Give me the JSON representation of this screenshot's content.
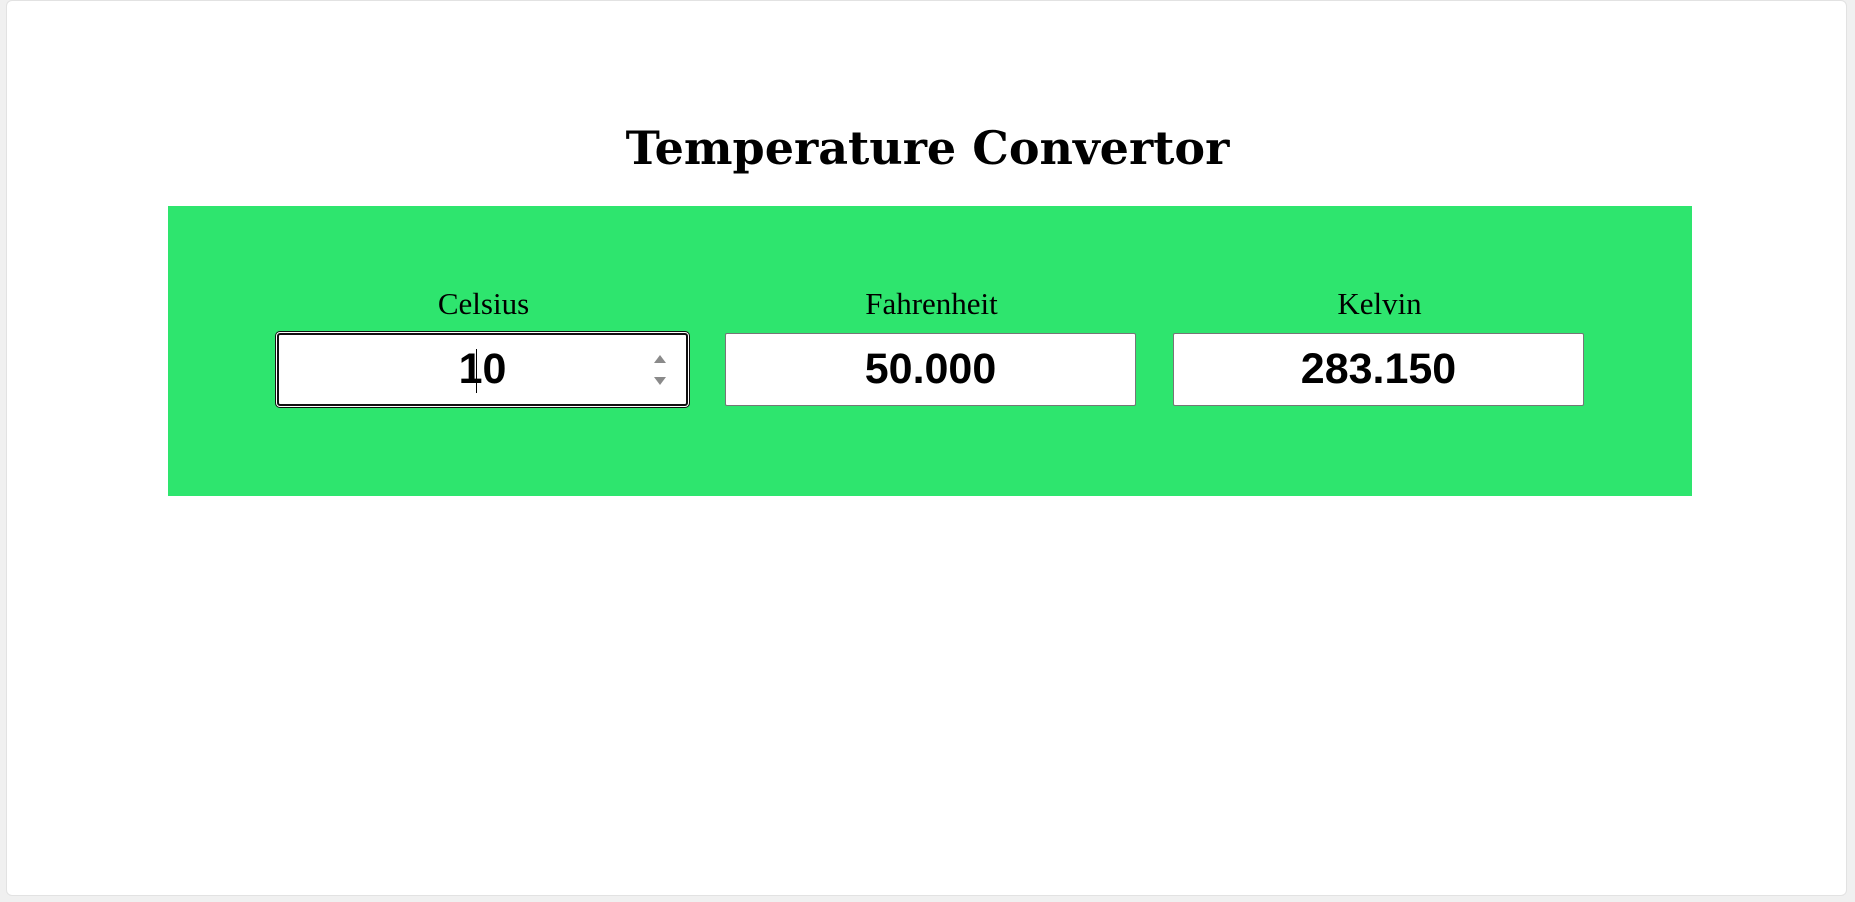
{
  "app": {
    "title": "Temperature Convertor"
  },
  "colors": {
    "panel_background": "#2ee56e",
    "page_background": "#ffffff"
  },
  "fields": [
    {
      "label": "Celsius",
      "value": "10",
      "focused": true,
      "has_spinner": true
    },
    {
      "label": "Fahrenheit",
      "value": "50.000",
      "focused": false,
      "has_spinner": false
    },
    {
      "label": "Kelvin",
      "value": "283.150",
      "focused": false,
      "has_spinner": false
    }
  ],
  "icons": {
    "spinner_up": "chevron-up-icon",
    "spinner_down": "chevron-down-icon"
  }
}
